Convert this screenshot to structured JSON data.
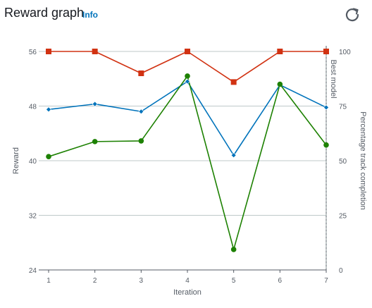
{
  "header": {
    "title": "Reward graph",
    "info_label": "Info",
    "refresh_icon": "refresh-icon"
  },
  "chart_data": {
    "type": "line",
    "x": [
      1,
      2,
      3,
      4,
      5,
      6,
      7
    ],
    "xlabel": "Iteration",
    "ylabel": "Reward",
    "y2label": "Percentage track completion",
    "best_model_label": "Best model",
    "ylim": [
      24,
      56
    ],
    "y2lim": [
      0,
      100
    ],
    "yticks": [
      24,
      32,
      40,
      48,
      56
    ],
    "y2ticks": [
      0,
      25,
      50,
      75,
      100
    ],
    "grid": true,
    "best_model_iteration": 7,
    "series": [
      {
        "axis": "y",
        "color": "#0073bb",
        "marker": "diamond",
        "values": [
          47.5,
          48.3,
          47.2,
          51.6,
          40.8,
          51.1,
          47.8
        ]
      },
      {
        "axis": "y",
        "color": "#1d8102",
        "marker": "circle",
        "values": [
          40.6,
          42.8,
          42.9,
          52.4,
          27.0,
          51.2,
          42.3
        ]
      },
      {
        "axis": "y2",
        "color": "#d13212",
        "marker": "square",
        "values": [
          100,
          100,
          90,
          100,
          86,
          100,
          100
        ]
      }
    ]
  }
}
